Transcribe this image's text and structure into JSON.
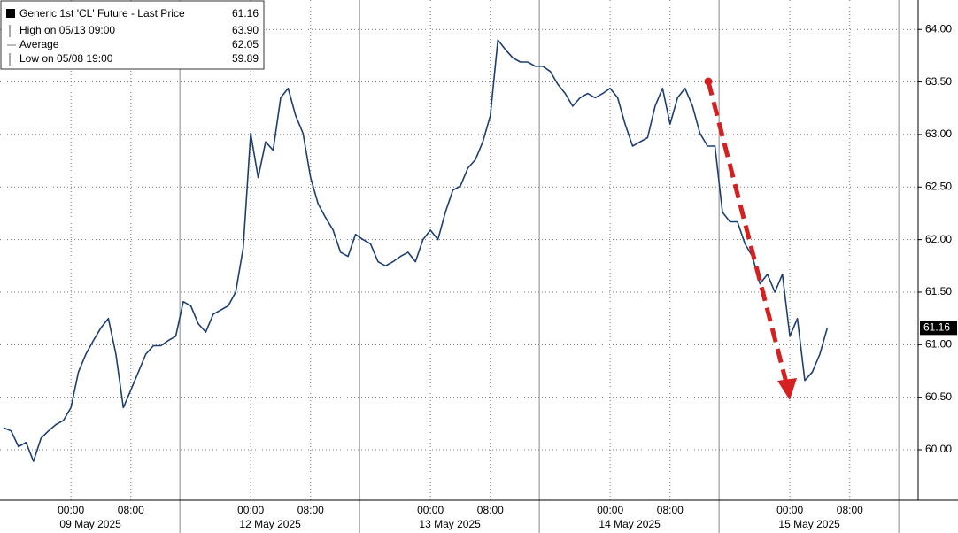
{
  "chart_data": {
    "type": "line",
    "series": [
      {
        "name": "Generic 1st 'CL' Future - Last Price",
        "color": "#1d3f70",
        "values": [
          60.21,
          60.18,
          60.03,
          60.07,
          59.89,
          60.11,
          60.18,
          60.24,
          60.28,
          60.4,
          60.74,
          60.91,
          61.04,
          61.16,
          61.25,
          60.91,
          60.4,
          60.57,
          60.74,
          60.91,
          60.99,
          60.99,
          61.04,
          61.08,
          61.41,
          61.37,
          61.2,
          61.12,
          61.29,
          61.33,
          61.37,
          61.5,
          61.92,
          63.01,
          62.59,
          62.93,
          62.85,
          63.35,
          63.44,
          63.18,
          63.01,
          62.59,
          62.34,
          62.21,
          62.09,
          61.88,
          61.84,
          62.05,
          62.0,
          61.96,
          61.79,
          61.75,
          61.79,
          61.84,
          61.88,
          61.79,
          62.0,
          62.09,
          62.0,
          62.26,
          62.47,
          62.51,
          62.68,
          62.76,
          62.93,
          63.18,
          63.9,
          63.81,
          63.73,
          63.69,
          63.69,
          63.65,
          63.65,
          63.6,
          63.48,
          63.39,
          63.27,
          63.35,
          63.39,
          63.35,
          63.39,
          63.44,
          63.35,
          63.1,
          62.89,
          62.93,
          62.97,
          63.27,
          63.44,
          63.1,
          63.35,
          63.44,
          63.27,
          63.01,
          62.89,
          62.89,
          62.26,
          62.17,
          62.17,
          61.96,
          61.84,
          61.58,
          61.67,
          61.5,
          61.67,
          61.08,
          61.25,
          60.66,
          60.74,
          60.91,
          61.16
        ]
      }
    ],
    "x": [
      "2025-05-08 15:00",
      "2025-05-08 16:00",
      "2025-05-08 17:00",
      "2025-05-08 18:00",
      "2025-05-08 19:00",
      "2025-05-08 20:00",
      "2025-05-08 21:00",
      "2025-05-08 22:00",
      "2025-05-08 23:00",
      "2025-05-09 00:00",
      "2025-05-09 01:00",
      "2025-05-09 02:00",
      "2025-05-09 03:00",
      "2025-05-09 04:00",
      "2025-05-09 05:00",
      "2025-05-09 06:00",
      "2025-05-09 07:00",
      "2025-05-09 08:00",
      "2025-05-09 09:00",
      "2025-05-09 10:00",
      "2025-05-09 11:00",
      "2025-05-09 12:00",
      "2025-05-09 13:00",
      "2025-05-09 14:00",
      "2025-05-09 15:00",
      "2025-05-09 16:00",
      "2025-05-09 17:00",
      "2025-05-09 18:00",
      "2025-05-09 19:00",
      "2025-05-09 20:00",
      "2025-05-09 21:00",
      "2025-05-09 22:00",
      "2025-05-09 23:00",
      "2025-05-12 00:00",
      "2025-05-12 01:00",
      "2025-05-12 02:00",
      "2025-05-12 03:00",
      "2025-05-12 04:00",
      "2025-05-12 05:00",
      "2025-05-12 06:00",
      "2025-05-12 07:00",
      "2025-05-12 08:00",
      "2025-05-12 09:00",
      "2025-05-12 10:00",
      "2025-05-12 11:00",
      "2025-05-12 12:00",
      "2025-05-12 13:00",
      "2025-05-12 14:00",
      "2025-05-12 15:00",
      "2025-05-12 16:00",
      "2025-05-12 17:00",
      "2025-05-12 18:00",
      "2025-05-12 19:00",
      "2025-05-12 20:00",
      "2025-05-12 21:00",
      "2025-05-12 22:00",
      "2025-05-12 23:00",
      "2025-05-13 00:00",
      "2025-05-13 01:00",
      "2025-05-13 02:00",
      "2025-05-13 03:00",
      "2025-05-13 04:00",
      "2025-05-13 05:00",
      "2025-05-13 06:00",
      "2025-05-13 07:00",
      "2025-05-13 08:00",
      "2025-05-13 09:00",
      "2025-05-13 10:00",
      "2025-05-13 11:00",
      "2025-05-13 12:00",
      "2025-05-13 13:00",
      "2025-05-13 14:00",
      "2025-05-13 15:00",
      "2025-05-13 16:00",
      "2025-05-13 17:00",
      "2025-05-13 18:00",
      "2025-05-13 19:00",
      "2025-05-13 20:00",
      "2025-05-13 21:00",
      "2025-05-13 22:00",
      "2025-05-13 23:00",
      "2025-05-14 00:00",
      "2025-05-14 01:00",
      "2025-05-14 02:00",
      "2025-05-14 03:00",
      "2025-05-14 04:00",
      "2025-05-14 05:00",
      "2025-05-14 06:00",
      "2025-05-14 07:00",
      "2025-05-14 08:00",
      "2025-05-14 09:00",
      "2025-05-14 10:00",
      "2025-05-14 11:00",
      "2025-05-14 12:00",
      "2025-05-14 13:00",
      "2025-05-14 14:00",
      "2025-05-14 15:00",
      "2025-05-14 16:00",
      "2025-05-14 17:00",
      "2025-05-14 18:00",
      "2025-05-14 19:00",
      "2025-05-14 20:00",
      "2025-05-14 21:00",
      "2025-05-14 22:00",
      "2025-05-14 23:00",
      "2025-05-15 00:00",
      "2025-05-15 01:00",
      "2025-05-15 02:00",
      "2025-05-15 03:00",
      "2025-05-15 04:00",
      "2025-05-15 05:00"
    ],
    "xticks": [
      {
        "value": "2025-05-09 00:00",
        "label": "00:00"
      },
      {
        "value": "2025-05-09 08:00",
        "label": "08:00"
      },
      {
        "value": "2025-05-12 00:00",
        "label": "00:00"
      },
      {
        "value": "2025-05-12 08:00",
        "label": "08:00"
      },
      {
        "value": "2025-05-13 00:00",
        "label": "00:00"
      },
      {
        "value": "2025-05-13 08:00",
        "label": "08:00"
      },
      {
        "value": "2025-05-14 00:00",
        "label": "00:00"
      },
      {
        "value": "2025-05-14 08:00",
        "label": "08:00"
      },
      {
        "value": "2025-05-15 00:00",
        "label": "00:00"
      },
      {
        "value": "2025-05-15 08:00",
        "label": "08:00"
      }
    ],
    "xdays": [
      {
        "value": "2025-05-09 00:00",
        "label": "09 May 2025"
      },
      {
        "value": "2025-05-12 00:00",
        "label": "12 May 2025"
      },
      {
        "value": "2025-05-13 00:00",
        "label": "13 May 2025"
      },
      {
        "value": "2025-05-14 00:00",
        "label": "14 May 2025"
      },
      {
        "value": "2025-05-15 00:00",
        "label": "15 May 2025"
      }
    ],
    "ylim": [
      59.52,
      64.28
    ],
    "yticks": [
      {
        "value": 60,
        "label": "60.00"
      },
      {
        "value": 60.5,
        "label": "60.50"
      },
      {
        "value": 61,
        "label": "61.00"
      },
      {
        "value": 61.5,
        "label": "61.50"
      },
      {
        "value": 62,
        "label": "62.00"
      },
      {
        "value": 62.5,
        "label": "62.50"
      },
      {
        "value": 63,
        "label": "63.00"
      },
      {
        "value": 63.5,
        "label": "63.50"
      },
      {
        "value": 64,
        "label": "64.00"
      }
    ],
    "grid": true,
    "last_price": 61.16,
    "stats": [
      {
        "name": "High on 05/13 09:00",
        "value": 63.9,
        "value_label": "63.90"
      },
      {
        "name": "Average",
        "value": 62.05
      },
      {
        "name": "Low on 05/08 19:00",
        "value": 59.89
      }
    ]
  }
}
